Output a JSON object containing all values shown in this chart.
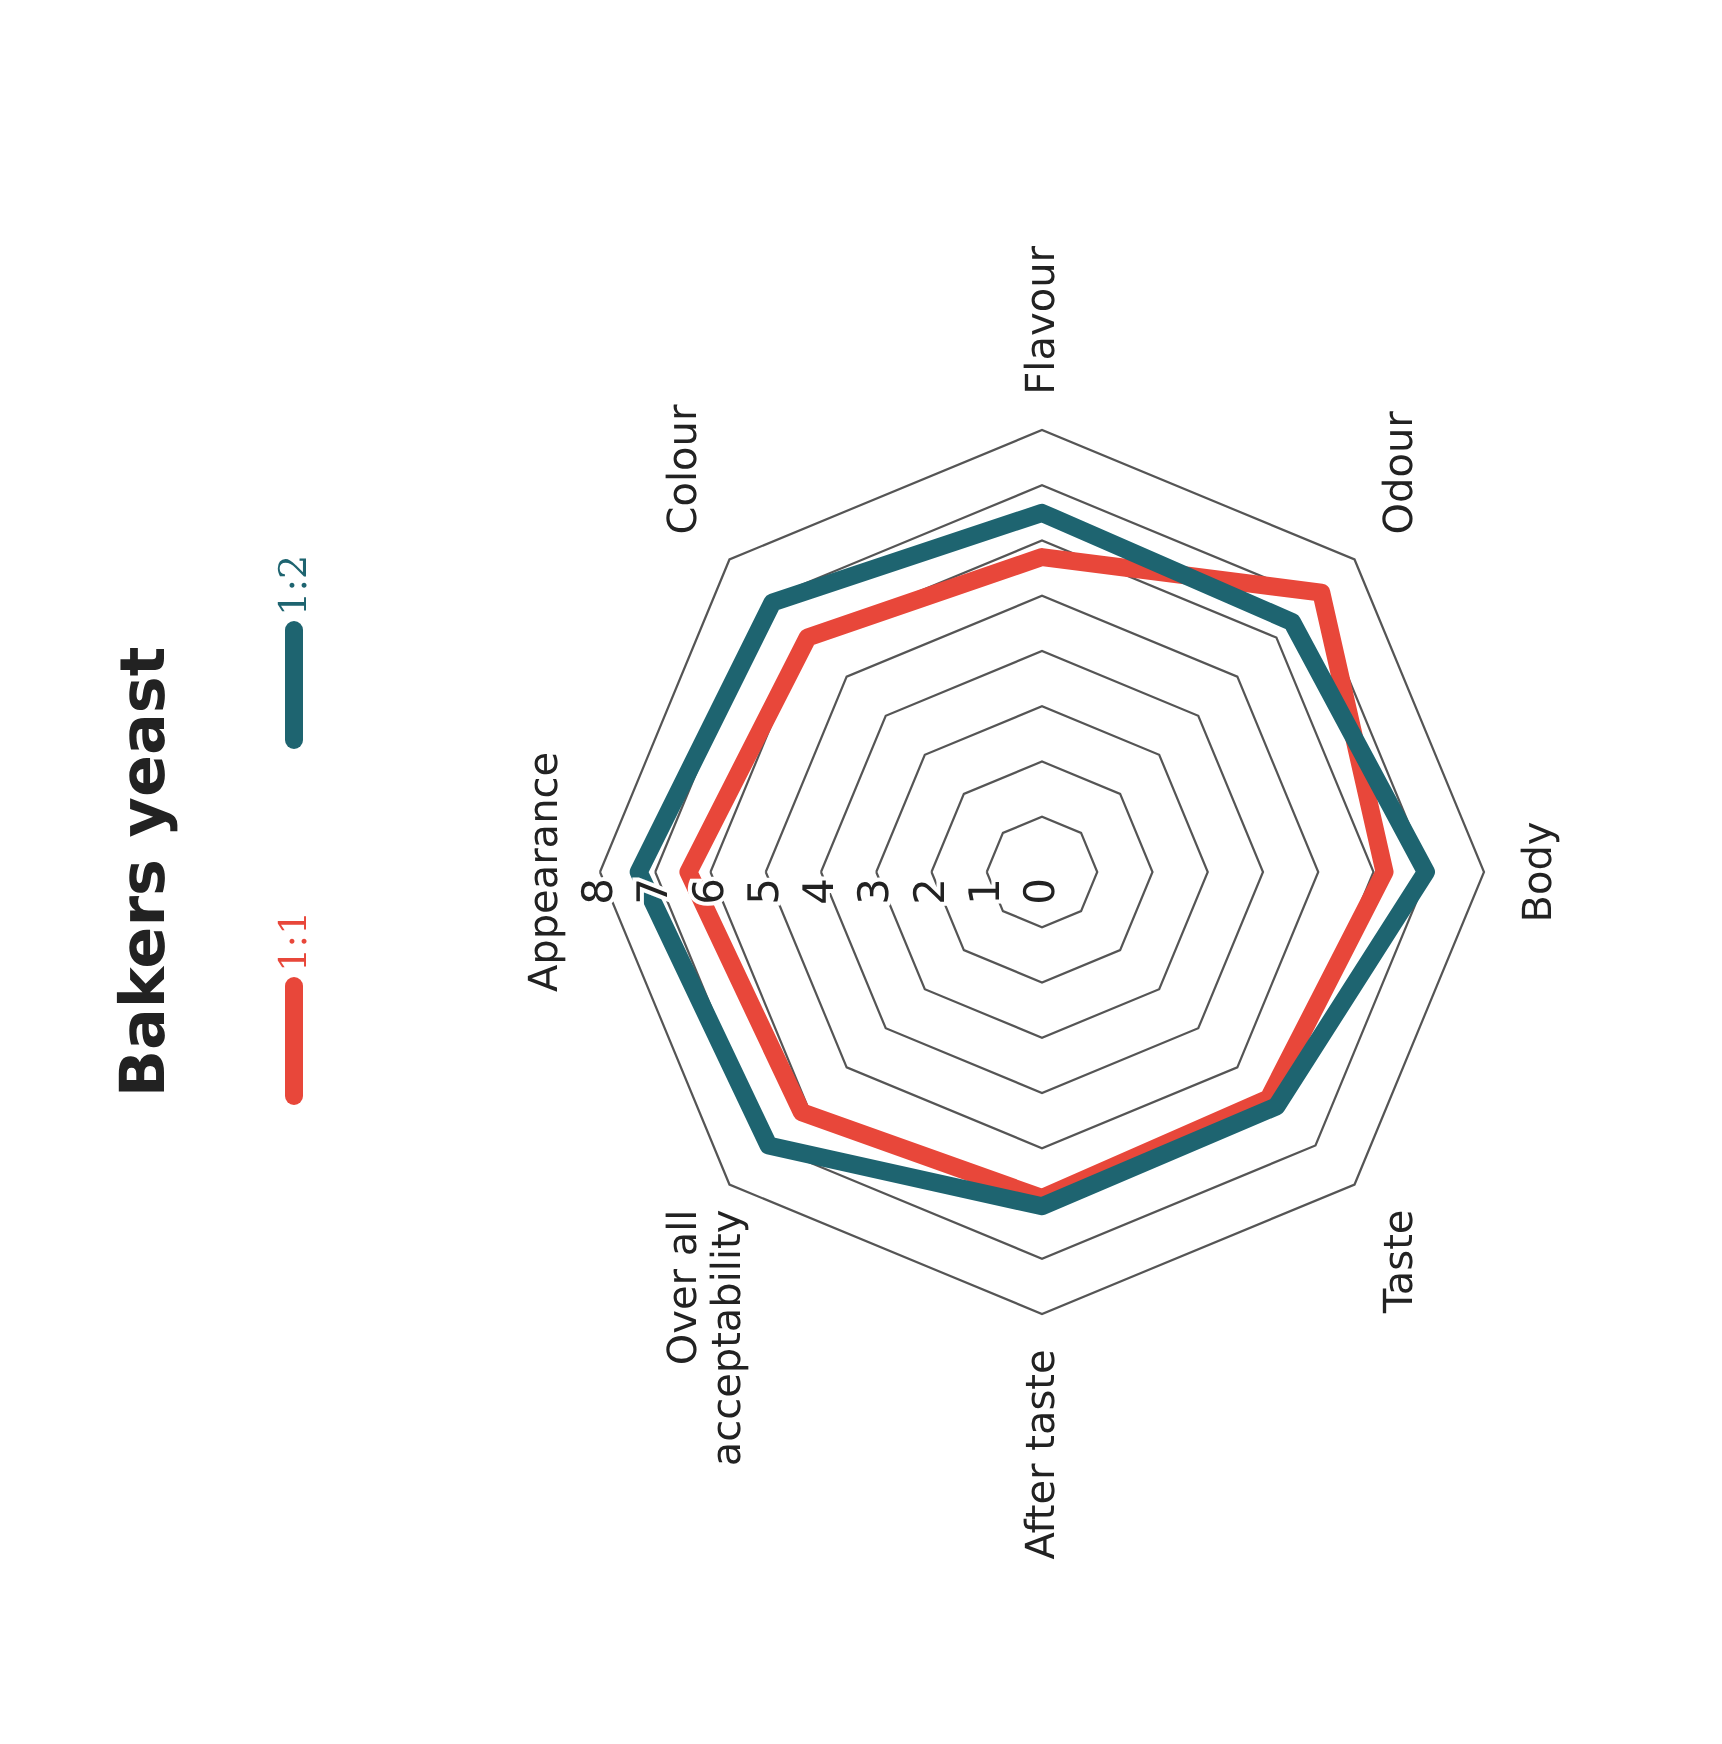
{
  "chart_data": {
    "type": "radar",
    "title": "Bakers yeast",
    "categories": [
      "Appearance",
      "Colour",
      "Flavour",
      "Odour",
      "Body",
      "Taste",
      "After taste",
      "Over all acceptability"
    ],
    "series": [
      {
        "name": "1:1",
        "color": "#e8473a",
        "values": [
          6.4,
          6.0,
          5.7,
          7.15,
          6.2,
          5.8,
          5.9,
          6.15
        ]
      },
      {
        "name": "1:2",
        "color": "#1e6470",
        "values": [
          7.3,
          6.9,
          6.5,
          6.4,
          6.95,
          6.0,
          6.05,
          7.0
        ]
      }
    ],
    "ylim": [
      0,
      8
    ],
    "yticks": [
      0,
      1,
      2,
      3,
      4,
      5,
      6,
      7,
      8
    ],
    "grid": true,
    "legend": "left"
  }
}
